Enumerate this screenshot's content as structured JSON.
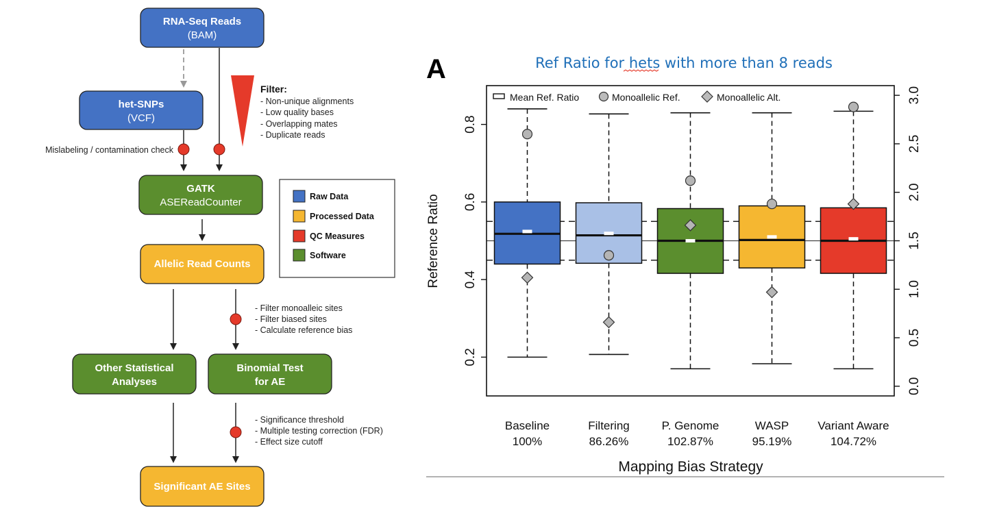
{
  "flowchart": {
    "nodes": {
      "rnaseq": {
        "title": "RNA-Seq Reads",
        "sub": "(BAM)"
      },
      "hetsnps": {
        "title": "het-SNPs",
        "sub": "(VCF)"
      },
      "gatk": {
        "title": "GATK",
        "sub": "ASEReadCounter"
      },
      "allelic": {
        "title": "Allelic Read Counts"
      },
      "other": {
        "line1": "Other Statistical",
        "line2": "Analyses"
      },
      "binomial": {
        "line1": "Binomial Test",
        "line2": "for AE"
      },
      "significant": {
        "title": "Significant AE Sites"
      }
    },
    "filter": {
      "heading": "Filter:",
      "items": [
        "- Non-unique alignments",
        "- Low quality bases",
        "- Overlapping mates",
        "- Duplicate reads"
      ]
    },
    "mislabel_note": "Mislabeling / contamination check",
    "qc_notes_1": [
      "- Filter monoalleic sites",
      "- Filter biased sites",
      "- Calculate reference bias"
    ],
    "qc_notes_2": [
      "- Significance threshold",
      "- Multiple testing correction (FDR)",
      "- Effect size cutoff"
    ],
    "legend": [
      {
        "label": "Raw Data",
        "color": "#4472c4"
      },
      {
        "label": "Processed Data",
        "color": "#f5b731"
      },
      {
        "label": "QC Measures",
        "color": "#e53a2a"
      },
      {
        "label": "Software",
        "color": "#5b8e2e"
      }
    ],
    "colors": {
      "raw": "#4472c4",
      "processed": "#f5b731",
      "qc": "#e53a2a",
      "software": "#5b8e2e"
    }
  },
  "panel_label": "A",
  "chart_data": {
    "type": "box",
    "title": "Ref Ratio for hets with more than 8 reads",
    "xlabel": "Mapping Bias Strategy",
    "ylabel": "Reference Ratio",
    "ylim": [
      0.1,
      0.9
    ],
    "yticks": [
      "0.2",
      "0.4",
      "0.6",
      "0.8"
    ],
    "y2lim": [
      -0.1,
      3.1
    ],
    "y2ticks": [
      "0.0",
      "0.5",
      "1.0",
      "1.5",
      "2.0",
      "2.5",
      "3.0"
    ],
    "legend_items": [
      "Mean Ref. Ratio",
      "Monoallelic Ref.",
      "Monoallelic Alt."
    ],
    "legend_position": "top",
    "hlines": {
      "solid": 0.5,
      "dashed": [
        0.45,
        0.55
      ]
    },
    "categories": [
      "Baseline",
      "Filtering",
      "P. Genome",
      "WASP",
      "Variant Aware"
    ],
    "percent_labels": [
      "100%",
      "86.26%",
      "102.87%",
      "95.19%",
      "104.72%"
    ],
    "boxes": [
      {
        "whisker_low": 0.2,
        "q1": 0.44,
        "median": 0.518,
        "q3": 0.6,
        "whisker_high": 0.84,
        "mean": 0.524,
        "mono_ref": 2.6,
        "mono_alt": 1.12,
        "color": "#4472c4"
      },
      {
        "whisker_low": 0.207,
        "q1": 0.442,
        "median": 0.514,
        "q3": 0.598,
        "whisker_high": 0.827,
        "mean": 0.519,
        "mono_ref": 1.35,
        "mono_alt": 0.66,
        "color": "#a9c0e6"
      },
      {
        "whisker_low": 0.17,
        "q1": 0.416,
        "median": 0.5,
        "q3": 0.583,
        "whisker_high": 0.83,
        "mean": 0.5,
        "mono_ref": 2.12,
        "mono_alt": 1.66,
        "color": "#5b8e2e"
      },
      {
        "whisker_low": 0.183,
        "q1": 0.43,
        "median": 0.502,
        "q3": 0.59,
        "whisker_high": 0.83,
        "mean": 0.51,
        "mono_ref": 1.88,
        "mono_alt": 0.97,
        "color": "#f5b731"
      },
      {
        "whisker_low": 0.17,
        "q1": 0.416,
        "median": 0.5,
        "q3": 0.585,
        "whisker_high": 0.834,
        "mean": 0.505,
        "mono_ref": 2.88,
        "mono_alt": 1.88,
        "color": "#e53a2a"
      }
    ]
  }
}
